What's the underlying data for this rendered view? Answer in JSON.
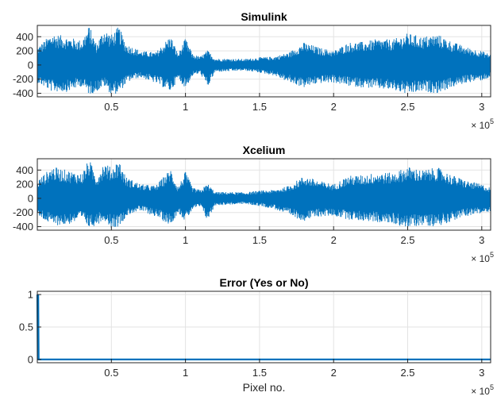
{
  "figure": {
    "background": "#ffffff",
    "series_color": "#0072BD",
    "grid_color": "#e3e3e3",
    "axis_color": "#262626"
  },
  "chart_data": [
    {
      "type": "line",
      "title": "Simulink",
      "xlabel": "",
      "ylabel": "",
      "xlim": [
        0,
        306000
      ],
      "ylim": [
        -450,
        560
      ],
      "x_ticks": [
        50000,
        100000,
        150000,
        200000,
        250000,
        300000
      ],
      "x_tick_labels": [
        "0.5",
        "1",
        "1.5",
        "2",
        "2.5",
        "3"
      ],
      "y_ticks": [
        -400,
        -200,
        0,
        200,
        400
      ],
      "y_tick_labels": [
        "-400",
        "-200",
        "0",
        "200",
        "400"
      ],
      "x_exponent_base": "× 10",
      "x_exponent_power": "5",
      "grid": true,
      "series": [
        {
          "x": [
            0,
            10000,
            20000,
            30000,
            35000,
            40000,
            45000,
            50000,
            55000,
            60000,
            65000,
            70000,
            80000,
            90000,
            95000,
            100000,
            105000,
            110000,
            115000,
            120000,
            130000,
            140000,
            150000,
            160000,
            170000,
            180000,
            190000,
            200000,
            210000,
            220000,
            230000,
            240000,
            250000,
            260000,
            270000,
            280000,
            290000,
            300000,
            306000
          ],
          "upper": [
            250,
            450,
            400,
            350,
            560,
            300,
            520,
            430,
            550,
            300,
            250,
            200,
            180,
            420,
            160,
            380,
            150,
            120,
            210,
            90,
            90,
            85,
            110,
            120,
            180,
            320,
            250,
            200,
            320,
            330,
            370,
            360,
            450,
            400,
            440,
            330,
            250,
            200,
            150
          ],
          "lower": [
            -250,
            -380,
            -380,
            -300,
            -420,
            -380,
            -300,
            -420,
            -400,
            -260,
            -200,
            -180,
            -260,
            -380,
            -200,
            -330,
            -150,
            -120,
            -320,
            -100,
            -90,
            -80,
            -110,
            -150,
            -250,
            -320,
            -260,
            -250,
            -300,
            -320,
            -340,
            -360,
            -420,
            -380,
            -400,
            -320,
            -250,
            -220,
            -180
          ]
        }
      ]
    },
    {
      "type": "line",
      "title": "Xcelium",
      "xlabel": "",
      "ylabel": "",
      "xlim": [
        0,
        306000
      ],
      "ylim": [
        -450,
        560
      ],
      "x_ticks": [
        50000,
        100000,
        150000,
        200000,
        250000,
        300000
      ],
      "x_tick_labels": [
        "0.5",
        "1",
        "1.5",
        "2",
        "2.5",
        "3"
      ],
      "y_ticks": [
        -400,
        -200,
        0,
        200,
        400
      ],
      "y_tick_labels": [
        "-400",
        "-200",
        "0",
        "200",
        "400"
      ],
      "x_exponent_base": "× 10",
      "x_exponent_power": "5",
      "grid": true,
      "series": [
        {
          "x": [
            0,
            10000,
            20000,
            30000,
            35000,
            40000,
            45000,
            50000,
            55000,
            60000,
            65000,
            70000,
            80000,
            90000,
            95000,
            100000,
            105000,
            110000,
            115000,
            120000,
            130000,
            140000,
            150000,
            160000,
            170000,
            180000,
            190000,
            200000,
            210000,
            220000,
            230000,
            240000,
            250000,
            260000,
            270000,
            280000,
            290000,
            300000,
            306000
          ],
          "upper": [
            250,
            450,
            400,
            350,
            560,
            300,
            520,
            430,
            550,
            300,
            250,
            200,
            180,
            420,
            160,
            380,
            150,
            120,
            210,
            90,
            90,
            85,
            110,
            120,
            180,
            320,
            250,
            200,
            320,
            330,
            370,
            360,
            450,
            400,
            440,
            330,
            250,
            200,
            150
          ],
          "lower": [
            -250,
            -380,
            -380,
            -300,
            -420,
            -380,
            -300,
            -420,
            -400,
            -260,
            -200,
            -180,
            -260,
            -380,
            -200,
            -330,
            -150,
            -120,
            -320,
            -100,
            -90,
            -80,
            -110,
            -150,
            -250,
            -320,
            -260,
            -250,
            -300,
            -320,
            -340,
            -360,
            -420,
            -380,
            -400,
            -320,
            -250,
            -220,
            -180
          ]
        }
      ]
    },
    {
      "type": "line",
      "title": "Error (Yes or No)",
      "xlabel": "Pixel no.",
      "ylabel": "",
      "xlim": [
        0,
        306000
      ],
      "ylim": [
        -0.05,
        1.05
      ],
      "x_ticks": [
        50000,
        100000,
        150000,
        200000,
        250000,
        300000
      ],
      "x_tick_labels": [
        "0.5",
        "1",
        "1.5",
        "2",
        "2.5",
        "3"
      ],
      "y_ticks": [
        0,
        0.5,
        1
      ],
      "y_tick_labels": [
        "0",
        "0.5",
        "1"
      ],
      "x_exponent_base": "× 10",
      "x_exponent_power": "5",
      "grid": true,
      "series": [
        {
          "x": [
            0,
            300,
            600,
            900,
            1200,
            306000
          ],
          "y": [
            1,
            0,
            1,
            0,
            0,
            0
          ]
        }
      ]
    }
  ]
}
